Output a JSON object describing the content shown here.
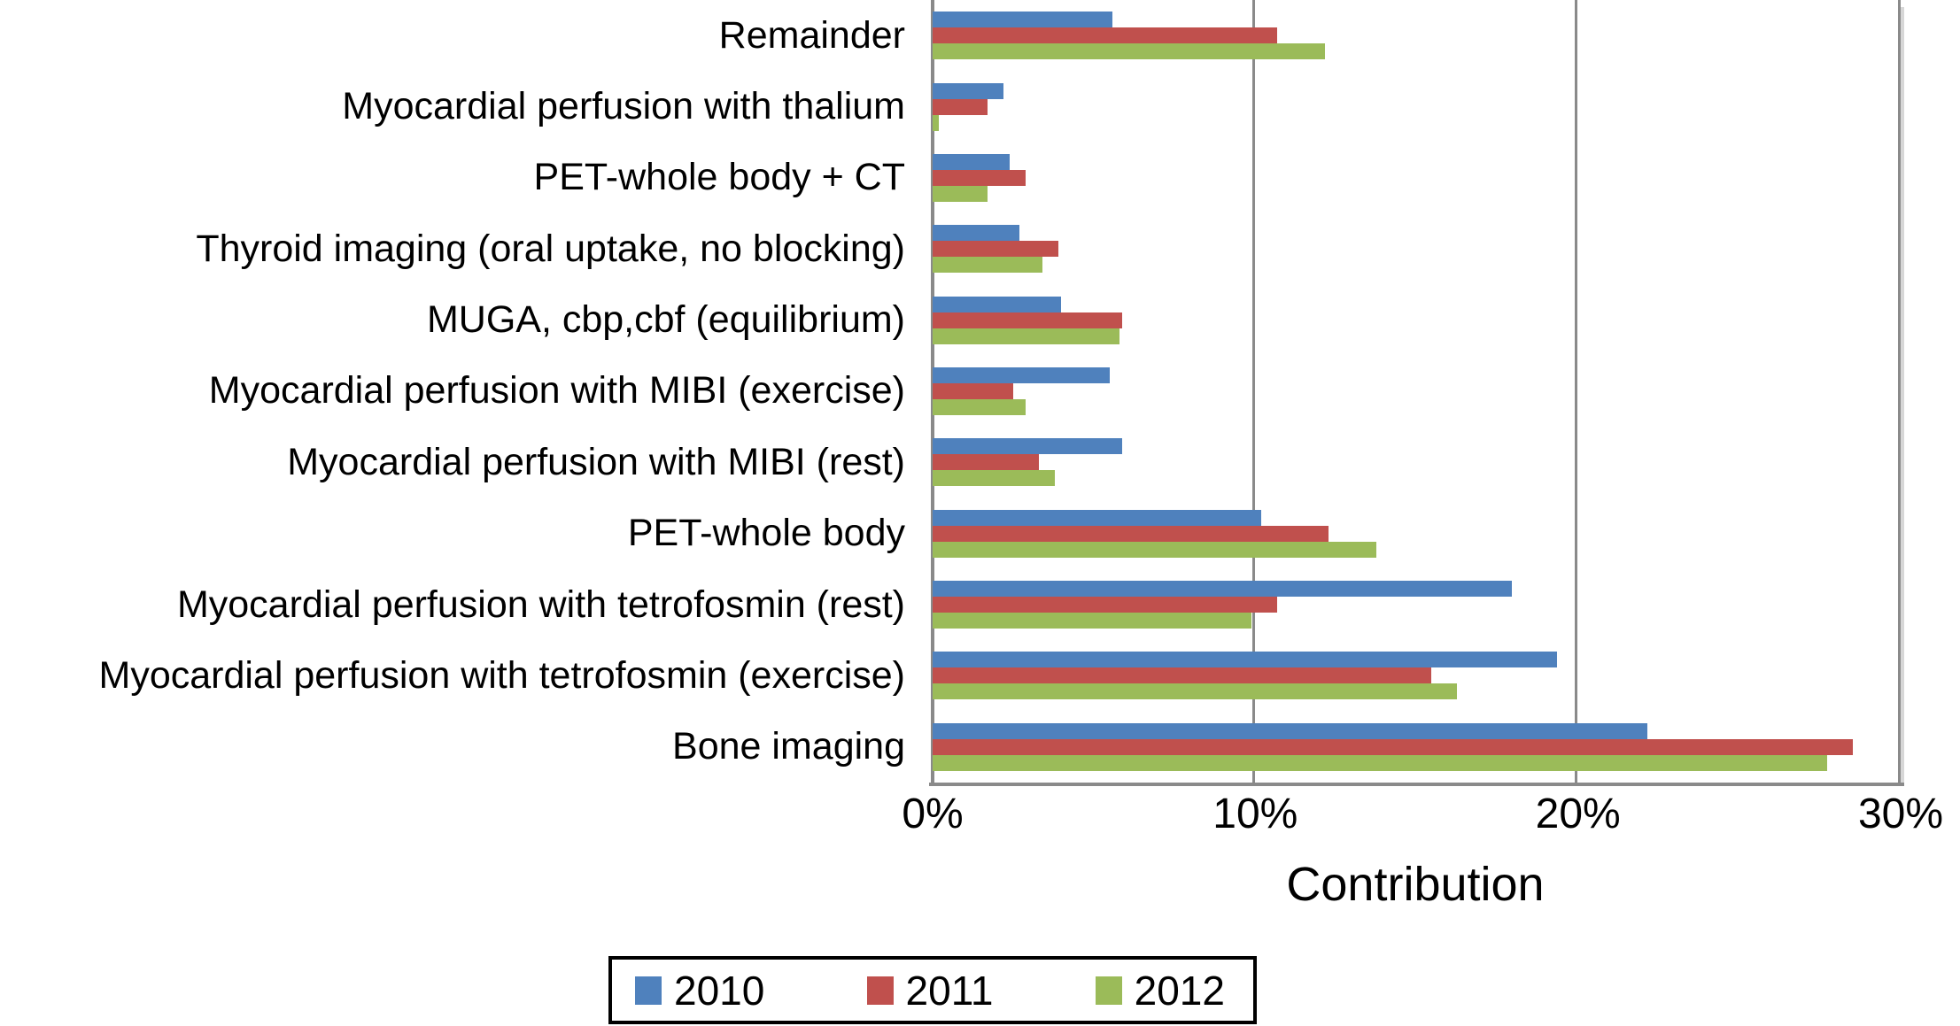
{
  "chart_data": {
    "type": "bar",
    "orientation": "horizontal",
    "xlabel": "Contribution",
    "categories_top_to_bottom": [
      "Remainder",
      "Myocardial perfusion with thalium",
      "PET-whole body + CT",
      "Thyroid imaging (oral uptake, no blocking)",
      "MUGA, cbp,cbf (equilibrium)",
      "Myocardial perfusion with MIBI (exercise)",
      "Myocardial perfusion with MIBI (rest)",
      "PET-whole body",
      "Myocardial perfusion with tetrofosmin (rest)",
      "Myocardial perfusion with tetrofosmin (exercise)",
      "Bone imaging"
    ],
    "series": [
      {
        "name": "2010",
        "color": "#4F81BD",
        "values": [
          5.6,
          2.2,
          2.4,
          2.7,
          4.0,
          5.5,
          5.9,
          10.2,
          18.0,
          19.4,
          22.2
        ]
      },
      {
        "name": "2011",
        "color": "#C0504D",
        "values": [
          10.7,
          1.7,
          2.9,
          3.9,
          5.9,
          2.5,
          3.3,
          12.3,
          10.7,
          15.5,
          28.6
        ]
      },
      {
        "name": "2012",
        "color": "#9BBB59",
        "values": [
          12.2,
          0.2,
          1.7,
          3.4,
          5.8,
          2.9,
          3.8,
          13.8,
          9.9,
          16.3,
          27.8
        ]
      }
    ],
    "xlim": [
      0,
      30
    ],
    "x_ticks": [
      "0%",
      "10%",
      "20%",
      "30%"
    ],
    "grid": "vertical gridlines at 10% and 20%, plot right border at 30%",
    "legend_position": "bottom",
    "legend_entries": [
      "2010",
      "2011",
      "2012"
    ]
  },
  "colors": {
    "axis_gray": "#8A8A8A",
    "shadow_gray": "#D7D7D7",
    "background": "#FFFFFF",
    "legend_border": "#000000"
  }
}
